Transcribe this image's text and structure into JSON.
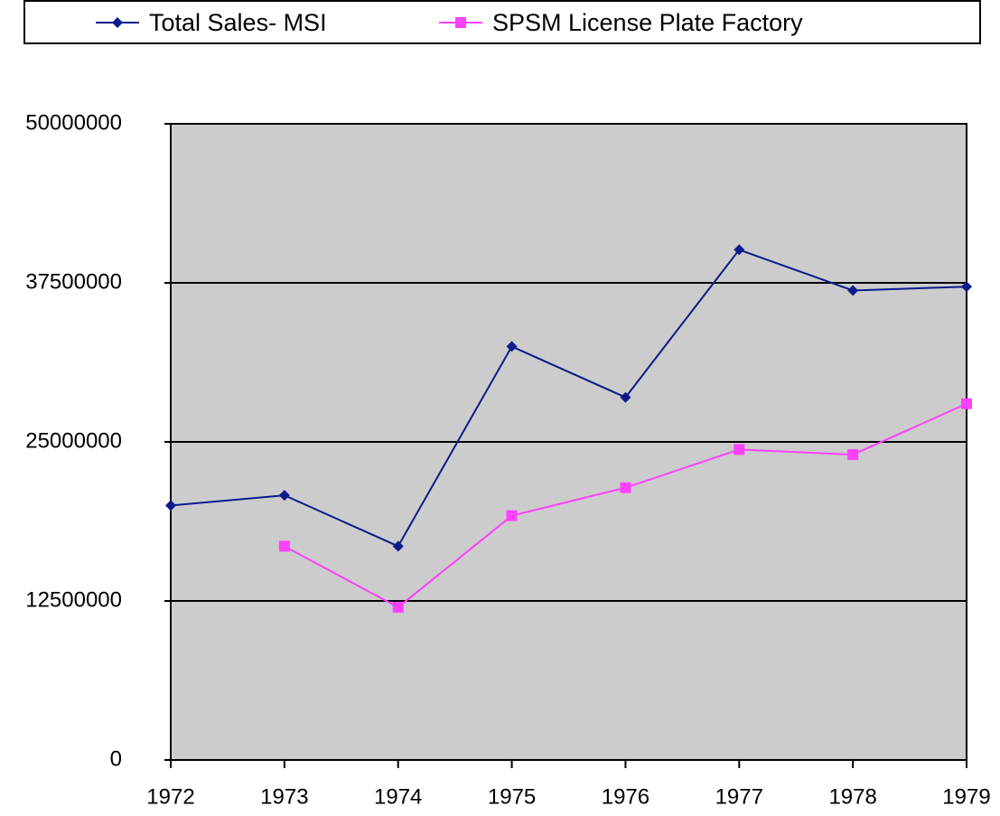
{
  "chart_data": {
    "type": "line",
    "categories": [
      "1972",
      "1973",
      "1974",
      "1975",
      "1976",
      "1977",
      "1978",
      "1979"
    ],
    "series": [
      {
        "name": "Total Sales- MSI",
        "color": "#0c1a8c",
        "marker": "diamond",
        "values": [
          20000000,
          20800000,
          16800000,
          32500000,
          28500000,
          40100000,
          36900000,
          37200000
        ]
      },
      {
        "name": "SPSM License Plate Factory",
        "color": "#ff40ff",
        "marker": "square",
        "values": [
          null,
          16800000,
          12000000,
          19200000,
          21400000,
          24400000,
          24000000,
          28000000
        ]
      }
    ],
    "ylim": [
      0,
      50000000
    ],
    "yticks": [
      0,
      12500000,
      25000000,
      37500000,
      50000000
    ],
    "grid": true,
    "legend": "top",
    "plot_background": "#cccccc"
  }
}
